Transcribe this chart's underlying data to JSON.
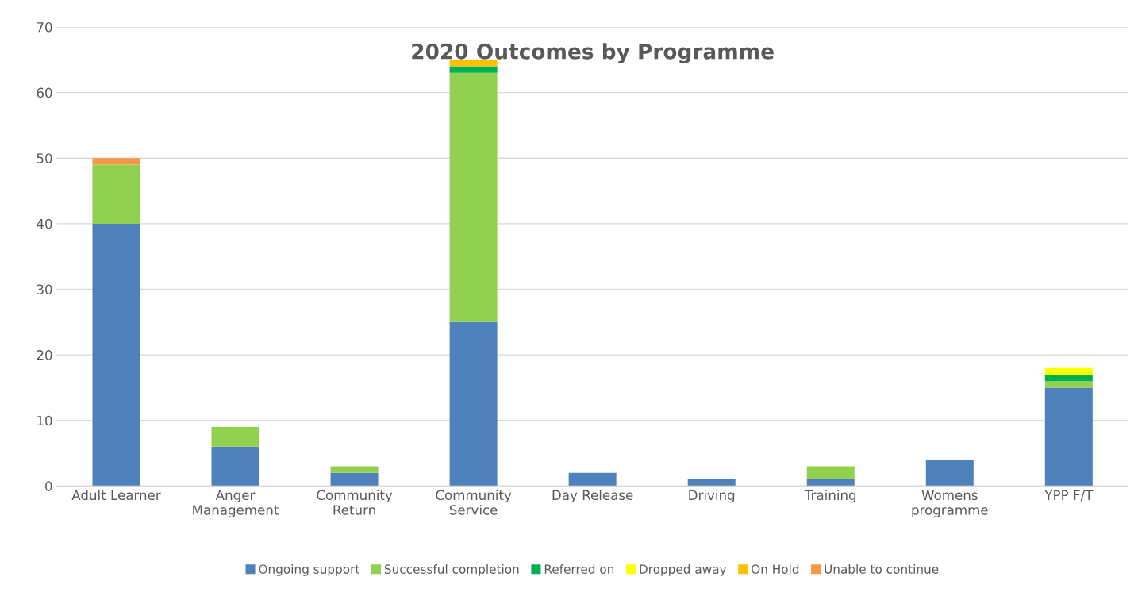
{
  "chart_data": {
    "type": "bar",
    "title": "2020 Outcomes by Programme",
    "stacked": true,
    "categories": [
      "Adult Learner",
      "Anger\nManagement",
      "Community\nReturn",
      "Community\nService",
      "Day Release",
      "Driving",
      "Training",
      "Womens\nprogramme",
      "YPP F/T"
    ],
    "series": [
      {
        "name": "Ongoing support",
        "color": "#4f81bd",
        "values": [
          40,
          6,
          2,
          25,
          2,
          1,
          1,
          4,
          15
        ]
      },
      {
        "name": "Successful completion",
        "color": "#92d050",
        "values": [
          9,
          3,
          1,
          38,
          0,
          0,
          2,
          0,
          1
        ]
      },
      {
        "name": "Referred on",
        "color": "#00b050",
        "values": [
          0,
          0,
          0,
          1,
          0,
          0,
          0,
          0,
          1
        ]
      },
      {
        "name": "Dropped away",
        "color": "#ffff00",
        "values": [
          0,
          0,
          0,
          0,
          0,
          0,
          0,
          0,
          1
        ]
      },
      {
        "name": "On Hold",
        "color": "#ffc000",
        "values": [
          0,
          0,
          0,
          1,
          0,
          0,
          0,
          0,
          0
        ]
      },
      {
        "name": "Unable to continue",
        "color": "#f79646",
        "values": [
          1,
          0,
          0,
          0,
          0,
          0,
          0,
          0,
          0
        ]
      }
    ],
    "ylim": [
      0,
      70
    ],
    "yticks": [
      0,
      10,
      20,
      30,
      40,
      50,
      60,
      70
    ],
    "grid": "y",
    "legend": "bottom"
  }
}
